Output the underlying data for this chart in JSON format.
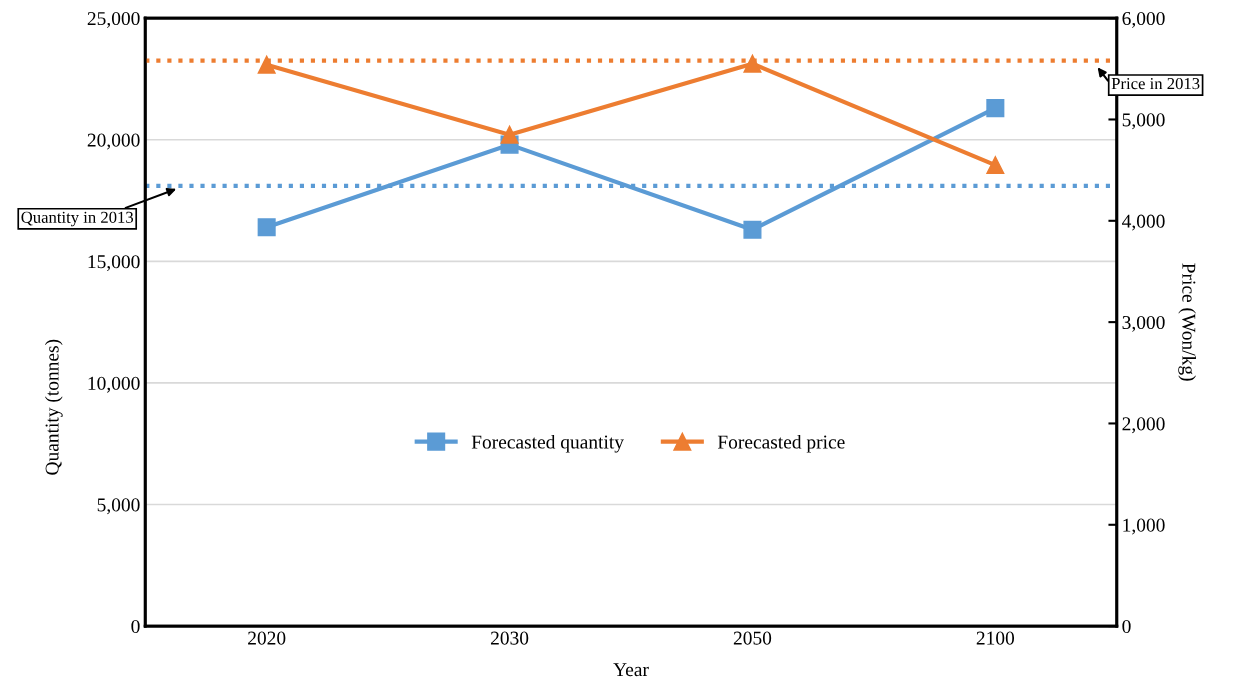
{
  "chart_data": {
    "type": "line",
    "xlabel": "Year",
    "ylabel": "Quantity (tonnes)",
    "y2label": "Price (Won/kg)",
    "categories": [
      "2020",
      "2030",
      "2050",
      "2100"
    ],
    "series": [
      {
        "name": "Forecasted quantity",
        "color": "#5b9bd5",
        "marker": "square",
        "values": [
          16400,
          19800,
          16300,
          21300
        ]
      },
      {
        "name": "Forecasted price",
        "color": "#ed7d31",
        "marker": "triangle",
        "axis": "y2",
        "values": [
          5540,
          4850,
          5550,
          4550
        ]
      }
    ],
    "ylim": [
      0,
      25000
    ],
    "yticks": [
      0,
      {
        "value": 5000,
        "label": "5,000"
      },
      {
        "value": 10000,
        "label": "10,000"
      },
      {
        "value": 15000,
        "label": "15,000"
      },
      {
        "value": 20000,
        "label": "20,000"
      },
      {
        "value": 25000,
        "label": "25,000"
      }
    ],
    "y2lim": [
      0,
      6000
    ],
    "y2ticks": [
      0,
      {
        "value": 1000,
        "label": "1,000"
      },
      {
        "value": 2000,
        "label": "2,000"
      },
      {
        "value": 3000,
        "label": "3,000"
      },
      {
        "value": 4000,
        "label": "4,000"
      },
      {
        "value": 5000,
        "label": "5,000"
      },
      {
        "value": 6000,
        "label": "6,000"
      }
    ],
    "ref_lines": [
      {
        "axis": "y",
        "value": 18100,
        "label": "Quantity in 2013",
        "color": "#5b9bd5",
        "line_style": "dotted"
      },
      {
        "axis": "y2",
        "value": 5580,
        "label": "Price in 2013",
        "color": "#ed7d31",
        "line_style": "dotted"
      }
    ],
    "grid": "y",
    "legend": "center",
    "line_style": "solid"
  }
}
